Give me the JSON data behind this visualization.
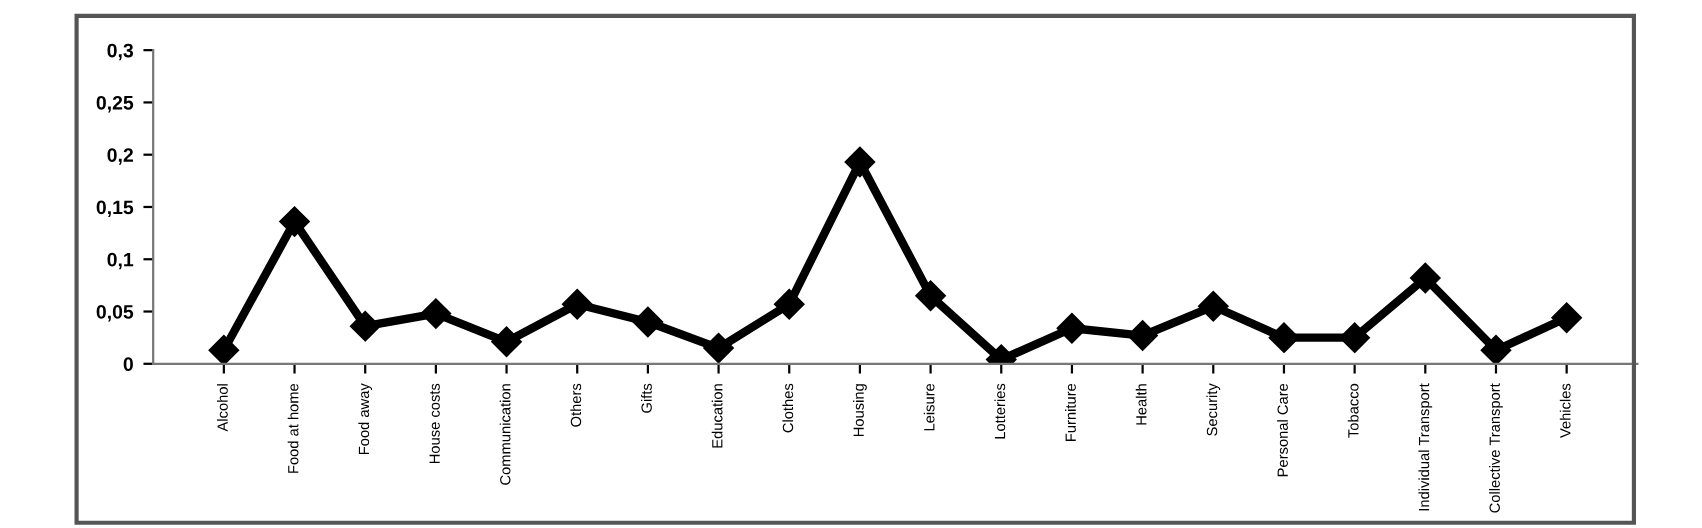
{
  "chart_data": {
    "type": "line",
    "categories": [
      "Alcohol",
      "Food at home",
      "Food away",
      "House costs",
      "Communication",
      "Others",
      "Gifts",
      "Education",
      "Clothes",
      "Housing",
      "Leisure",
      "Lotteries",
      "Furniture",
      "Health",
      "Security",
      "Personal Care",
      "Tobacco",
      "Individual Transport",
      "Collective Transport",
      "Vehicles"
    ],
    "series": [
      {
        "color": "#000000",
        "values": [
          0.013,
          0.136,
          0.036,
          0.048,
          0.021,
          0.057,
          0.04,
          0.015,
          0.057,
          0.193,
          0.065,
          0.004,
          0.034,
          0.027,
          0.055,
          0.025,
          0.025,
          0.082,
          0.013,
          0.044
        ]
      }
    ],
    "ylim": [
      0,
      0.3
    ],
    "yticks": [
      0,
      {
        "value": 0.05,
        "label": "0,05"
      },
      {
        "value": 0.1,
        "label": "0,1"
      },
      {
        "value": 0.15,
        "label": "0,15"
      },
      {
        "value": 0.2,
        "label": "0,2"
      },
      {
        "value": 0.25,
        "label": "0,25"
      },
      {
        "value": 0.3,
        "label": "0,3"
      }
    ],
    "marker": "diamond",
    "line_style": "solid",
    "grid": false,
    "legend": false
  }
}
